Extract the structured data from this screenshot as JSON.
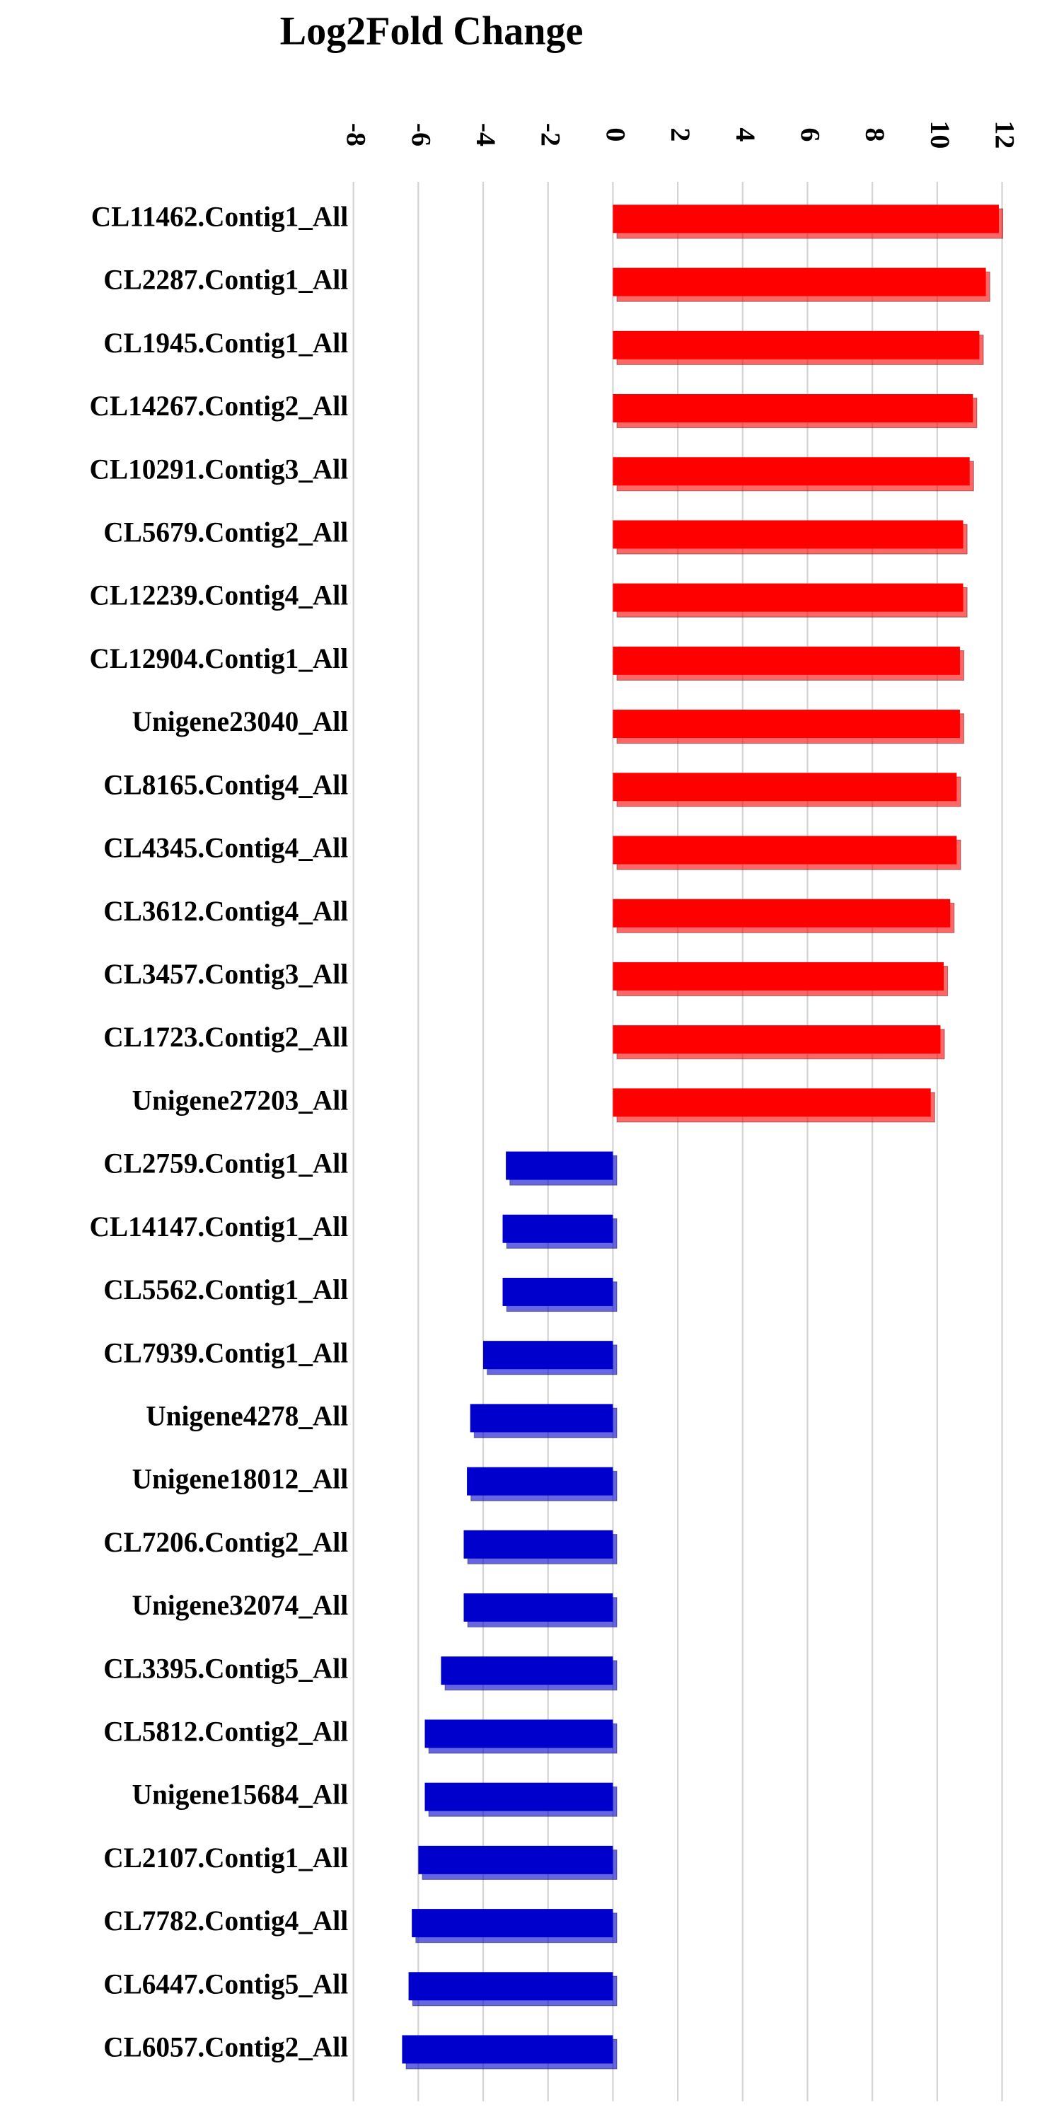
{
  "chart_data": {
    "type": "hbar",
    "title": "Log2Fold Change",
    "categories": [
      "CL11462.Contig1_All",
      "CL2287.Contig1_All",
      "CL1945.Contig1_All",
      "CL14267.Contig2_All",
      "CL10291.Contig3_All",
      "CL5679.Contig2_All",
      "CL12239.Contig4_All",
      "CL12904.Contig1_All",
      "Unigene23040_All",
      "CL8165.Contig4_All",
      "CL4345.Contig4_All",
      "CL3612.Contig4_All",
      "CL3457.Contig3_All",
      "CL1723.Contig2_All",
      "Unigene27203_All",
      "CL2759.Contig1_All",
      "CL14147.Contig1_All",
      "CL5562.Contig1_All",
      "CL7939.Contig1_All",
      "Unigene4278_All",
      "Unigene18012_All",
      "CL7206.Contig2_All",
      "Unigene32074_All",
      "CL3395.Contig5_All",
      "CL5812.Contig2_All",
      "Unigene15684_All",
      "CL2107.Contig1_All",
      "CL7782.Contig4_All",
      "CL6447.Contig5_All",
      "CL6057.Contig2_All"
    ],
    "values": [
      11.9,
      11.5,
      11.3,
      11.1,
      11.0,
      10.8,
      10.8,
      10.7,
      10.7,
      10.6,
      10.6,
      10.4,
      10.2,
      10.1,
      9.8,
      -3.3,
      -3.4,
      -3.4,
      -4.0,
      -4.4,
      -4.5,
      -4.6,
      -4.6,
      -5.3,
      -5.8,
      -5.8,
      -6.0,
      -6.2,
      -6.3,
      -6.5
    ],
    "positive_color": "#ff0000",
    "negative_color": "#0000cc",
    "xlim": [
      -8,
      12
    ],
    "xticks": [
      -8,
      -6,
      -4,
      -2,
      0,
      2,
      4,
      6,
      8,
      10,
      12
    ],
    "grid": true
  }
}
